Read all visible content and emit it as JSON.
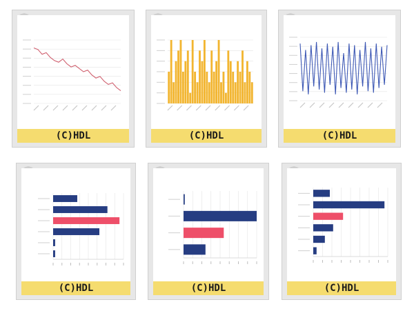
{
  "captions": [
    "(C)HDL",
    "(C)HDL",
    "(C)HDL",
    "(C)HDL",
    "(C)HDL",
    "(C)HDL"
  ],
  "colors": {
    "line1": "#d0606f",
    "bars": "#f2b530",
    "line3": "#3c57b4",
    "navy": "#263d82",
    "pink": "#ee4f69",
    "grid": "#e4e4e4",
    "caption": "#f5dc6f"
  },
  "chart_data": [
    {
      "type": "line",
      "title": "",
      "ylim": [
        21.5,
        25.5
      ],
      "y": [
        25.0,
        24.9,
        24.6,
        24.7,
        24.4,
        24.2,
        24.1,
        24.3,
        24.0,
        23.8,
        23.9,
        23.7,
        23.5,
        23.6,
        23.3,
        23.1,
        23.2,
        22.9,
        22.7,
        22.8,
        22.5,
        22.3
      ]
    },
    {
      "type": "bar",
      "title": "",
      "ylim": [
        0,
        6
      ],
      "values": [
        3,
        6,
        2,
        4,
        5,
        6,
        3,
        4,
        5,
        1,
        6,
        3,
        2,
        5,
        4,
        6,
        3,
        2,
        5,
        3,
        4,
        6,
        2,
        3,
        1,
        5,
        4,
        3,
        2,
        4,
        3,
        5,
        2,
        4,
        3,
        2
      ]
    },
    {
      "type": "line",
      "title": "",
      "ylim": [
        -2,
        2
      ],
      "y": [
        1.6,
        -1.4,
        1.2,
        -1.6,
        1.5,
        -1.1,
        1.7,
        -1.3,
        1.3,
        -1.5,
        1.6,
        -1.0,
        1.4,
        -1.6,
        1.7,
        -1.2,
        1.0,
        -1.5,
        1.6,
        -1.3,
        1.5,
        -1.6,
        1.2,
        -1.1,
        1.7,
        -1.4,
        1.3,
        -1.5,
        1.6,
        -1.2,
        1.4,
        -1.0,
        1.5
      ]
    },
    {
      "type": "bar",
      "orientation": "horizontal",
      "title": "",
      "xlim": [
        0,
        35
      ],
      "values": [
        12,
        27,
        33,
        23,
        1,
        1
      ],
      "highlight": [
        false,
        false,
        true,
        false,
        false,
        false
      ]
    },
    {
      "type": "bar",
      "orientation": "horizontal",
      "title": "",
      "xlim": [
        0,
        60
      ],
      "values": [
        1,
        60,
        33,
        18
      ],
      "highlight": [
        false,
        false,
        true,
        false
      ]
    },
    {
      "type": "bar",
      "orientation": "horizontal",
      "title": "",
      "xlim": [
        0,
        45
      ],
      "values": [
        10,
        43,
        18,
        12,
        7,
        2
      ],
      "highlight": [
        false,
        false,
        true,
        false,
        false,
        false
      ]
    }
  ]
}
